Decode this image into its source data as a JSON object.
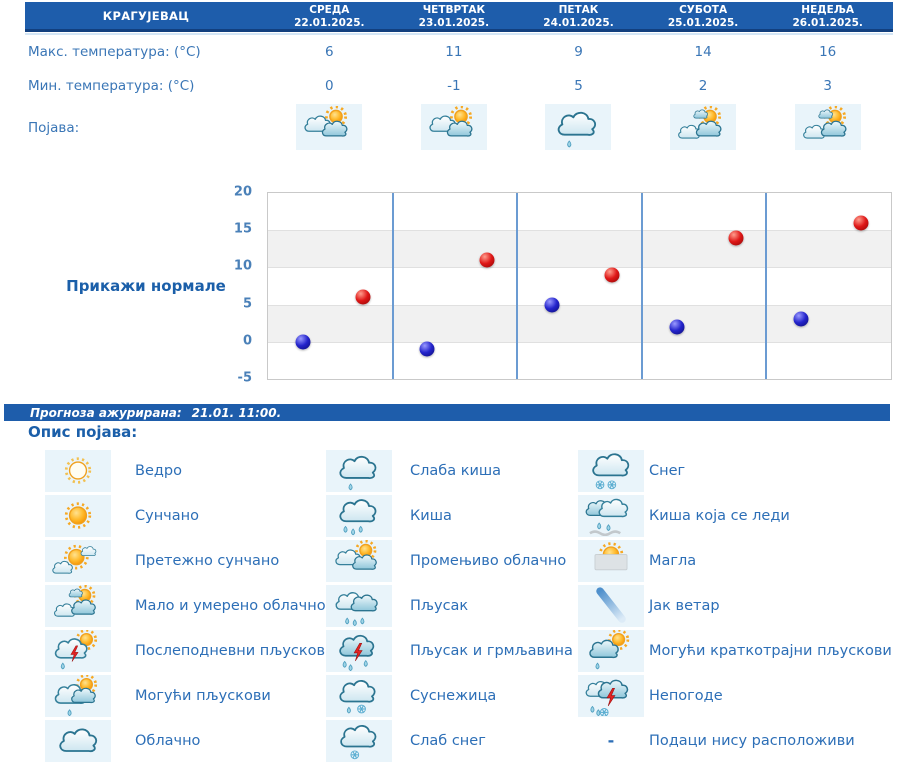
{
  "header": {
    "city": "КРАГУЈЕВАЦ",
    "days": [
      {
        "name": "СРЕДА",
        "date": "22.01.2025."
      },
      {
        "name": "ЧЕТВРТАК",
        "date": "23.01.2025."
      },
      {
        "name": "ПЕТАК",
        "date": "24.01.2025."
      },
      {
        "name": "СУБОТА",
        "date": "25.01.2025."
      },
      {
        "name": "НЕДЕЉА",
        "date": "26.01.2025."
      }
    ]
  },
  "rows": {
    "max_label": "Макс. температура: (°C)",
    "max_values": [
      "6",
      "11",
      "9",
      "14",
      "16"
    ],
    "min_label": "Мин. температура: (°C)",
    "min_values": [
      "0",
      "-1",
      "5",
      "2",
      "3"
    ],
    "appearance_label": "Појава:",
    "appearance_icons": [
      "variable-cloudy",
      "variable-cloudy",
      "light-rain",
      "partly-cloudy",
      "partly-cloudy"
    ]
  },
  "controls": {
    "show_normals": "Прикажи нормале"
  },
  "chart_data": {
    "type": "scatter",
    "categories": [
      "22.01.2025.",
      "23.01.2025.",
      "24.01.2025.",
      "25.01.2025.",
      "26.01.2025."
    ],
    "series": [
      {
        "name": "Макс. температура (°C)",
        "color": "#cc1111",
        "values": [
          6,
          11,
          9,
          14,
          16
        ]
      },
      {
        "name": "Мин. температура (°C)",
        "color": "#2222cc",
        "values": [
          0,
          -1,
          5,
          2,
          3
        ]
      }
    ],
    "ylim": [
      -5,
      20
    ],
    "yticks": [
      "20",
      "15",
      "10",
      "5",
      "0",
      "-5"
    ],
    "grid": "horizontal gridlines every 5, alternating gray bands, blue vertical day separators",
    "legend_position": "none"
  },
  "status": {
    "label": "Прогноза ажурирана:",
    "value": "21.01. 11:00."
  },
  "legend": {
    "title": "Опис појава:",
    "dash_symbol": "-",
    "columns": [
      {
        "items": [
          {
            "icon": "vedro",
            "label": "Ведро"
          },
          {
            "icon": "sunny",
            "label": "Сунчано"
          },
          {
            "icon": "mostly-sunny",
            "label": "Претежно сунчано"
          },
          {
            "icon": "partly-cloudy",
            "label": "Мало и умерено облачно"
          },
          {
            "icon": "afternoon-showers",
            "label": "Послеподневни пљускови"
          },
          {
            "icon": "possible-showers",
            "label": "Могући пљускови"
          },
          {
            "icon": "cloudy",
            "label": "Облачно"
          }
        ]
      },
      {
        "items": [
          {
            "icon": "light-rain",
            "label": "Слаба киша"
          },
          {
            "icon": "rain",
            "label": "Киша"
          },
          {
            "icon": "variable-cloudy",
            "label": "Промењиво облачно"
          },
          {
            "icon": "shower",
            "label": "Пљусак"
          },
          {
            "icon": "thunder-shower",
            "label": "Пљусак и грмљавина"
          },
          {
            "icon": "sleet",
            "label": "Суснежица"
          },
          {
            "icon": "light-snow",
            "label": "Слаб снег"
          }
        ]
      },
      {
        "items": [
          {
            "icon": "snow",
            "label": "Снег"
          },
          {
            "icon": "freezing-rain",
            "label": "Киша која се леди"
          },
          {
            "icon": "fog",
            "label": "Магла"
          },
          {
            "icon": "wind",
            "label": "Јак ветар"
          },
          {
            "icon": "short-showers",
            "label": "Могући краткотрајни пљускови"
          },
          {
            "icon": "storm",
            "label": "Непогоде"
          },
          {
            "icon": "dash",
            "label": "Подаци нису расположиви"
          }
        ]
      }
    ]
  },
  "colors": {
    "header_bar": "#1e5dab",
    "table_text": "#3a76b6",
    "legend_text": "#2d6fb7",
    "title_text": "#1b5fa9",
    "icon_cell_bg": "#e9f4fa",
    "day_separator": "#6b9bd2",
    "max_dot": "#cc1111",
    "min_dot": "#2222cc"
  }
}
